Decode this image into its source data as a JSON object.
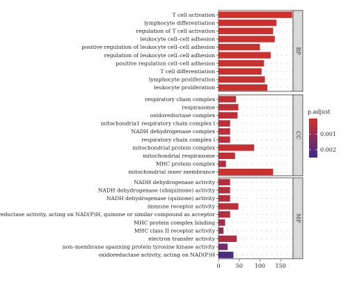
{
  "chart_data": {
    "type": "bar",
    "orientation": "horizontal",
    "xlim": [
      0,
      180
    ],
    "x_ticks": [
      0,
      50,
      100,
      150
    ],
    "grid": "dotted",
    "legend_placement": "right",
    "legend": {
      "title": "p.adjust",
      "ticks": [
        {
          "label": "0.001",
          "value": 0.001
        },
        {
          "label": "0.002",
          "value": 0.002
        }
      ],
      "range": [
        0.0,
        0.0025
      ],
      "colors": {
        "low": "#d2302a",
        "high": "#3c2a8e"
      }
    },
    "panels": [
      {
        "label": "BP",
        "bars": [
          {
            "term": "T cell activation",
            "count": 178,
            "p_adjust": 5e-05
          },
          {
            "term": "lymphocyte differentiation",
            "count": 140,
            "p_adjust": 0.0001
          },
          {
            "term": "regulation of T cell activation",
            "count": 132,
            "p_adjust": 0.0001
          },
          {
            "term": "leukocyte cell–cell adhesion",
            "count": 136,
            "p_adjust": 0.0001
          },
          {
            "term": "positive regulation of leukocyte cell–cell adhesion",
            "count": 100,
            "p_adjust": 0.00015
          },
          {
            "term": "regulation of leukocyte cell–cell adhesion",
            "count": 126,
            "p_adjust": 0.0001
          },
          {
            "term": "positive regulation cell–cell adhesion",
            "count": 110,
            "p_adjust": 0.00015
          },
          {
            "term": "T cell differentiation",
            "count": 104,
            "p_adjust": 0.00015
          },
          {
            "term": "lymphocyte proliferation",
            "count": 112,
            "p_adjust": 0.00015
          },
          {
            "term": "leukocyte proliferation",
            "count": 118,
            "p_adjust": 0.00015
          }
        ]
      },
      {
        "label": "CC",
        "bars": [
          {
            "term": "respiratory chain complex",
            "count": 42,
            "p_adjust": 0.0003
          },
          {
            "term": "respirasome",
            "count": 48,
            "p_adjust": 0.0003
          },
          {
            "term": "oxidoreductase complex",
            "count": 46,
            "p_adjust": 0.0003
          },
          {
            "term": "mitochondria1 respiratory chain complex l",
            "count": 28,
            "p_adjust": 0.0004
          },
          {
            "term": "NADH dehydrogenase complex",
            "count": 28,
            "p_adjust": 0.0004
          },
          {
            "term": "respiratory chain complex l",
            "count": 28,
            "p_adjust": 0.0004
          },
          {
            "term": "mitochondrial protein complex",
            "count": 86,
            "p_adjust": 0.0002
          },
          {
            "term": "mitochondrial respirasome",
            "count": 40,
            "p_adjust": 0.0003
          },
          {
            "term": "MHC protein complex",
            "count": 18,
            "p_adjust": 0.0006
          },
          {
            "term": "mitochondrial inner membrance",
            "count": 132,
            "p_adjust": 0.0001
          }
        ]
      },
      {
        "label": "MF",
        "bars": [
          {
            "term": "NADH dehydrogenase activity",
            "count": 28,
            "p_adjust": 0.0005
          },
          {
            "term": "NADH dehydrogenase (ubiquinone) activity",
            "count": 28,
            "p_adjust": 0.0005
          },
          {
            "term": "NADH dehydrogenase (quinone) activity",
            "count": 28,
            "p_adjust": 0.0005
          },
          {
            "term": "immune receptor activity",
            "count": 48,
            "p_adjust": 0.0004
          },
          {
            "term": "oxidoreductase activity, acting on NAD(P)H, quinone or similar compound as acceptor",
            "count": 28,
            "p_adjust": 0.0005
          },
          {
            "term": "MHC protein complex binding",
            "count": 16,
            "p_adjust": 0.0008
          },
          {
            "term": "MHC class II receptor activity",
            "count": 12,
            "p_adjust": 0.001
          },
          {
            "term": "electron transfer activity",
            "count": 44,
            "p_adjust": 0.0006
          },
          {
            "term": "non–membrane spanning protein tyrosine kinase activity",
            "count": 22,
            "p_adjust": 0.0016
          },
          {
            "term": "oxidoreductase activity, acting on NAD(P)H",
            "count": 36,
            "p_adjust": 0.0022
          }
        ]
      }
    ]
  }
}
